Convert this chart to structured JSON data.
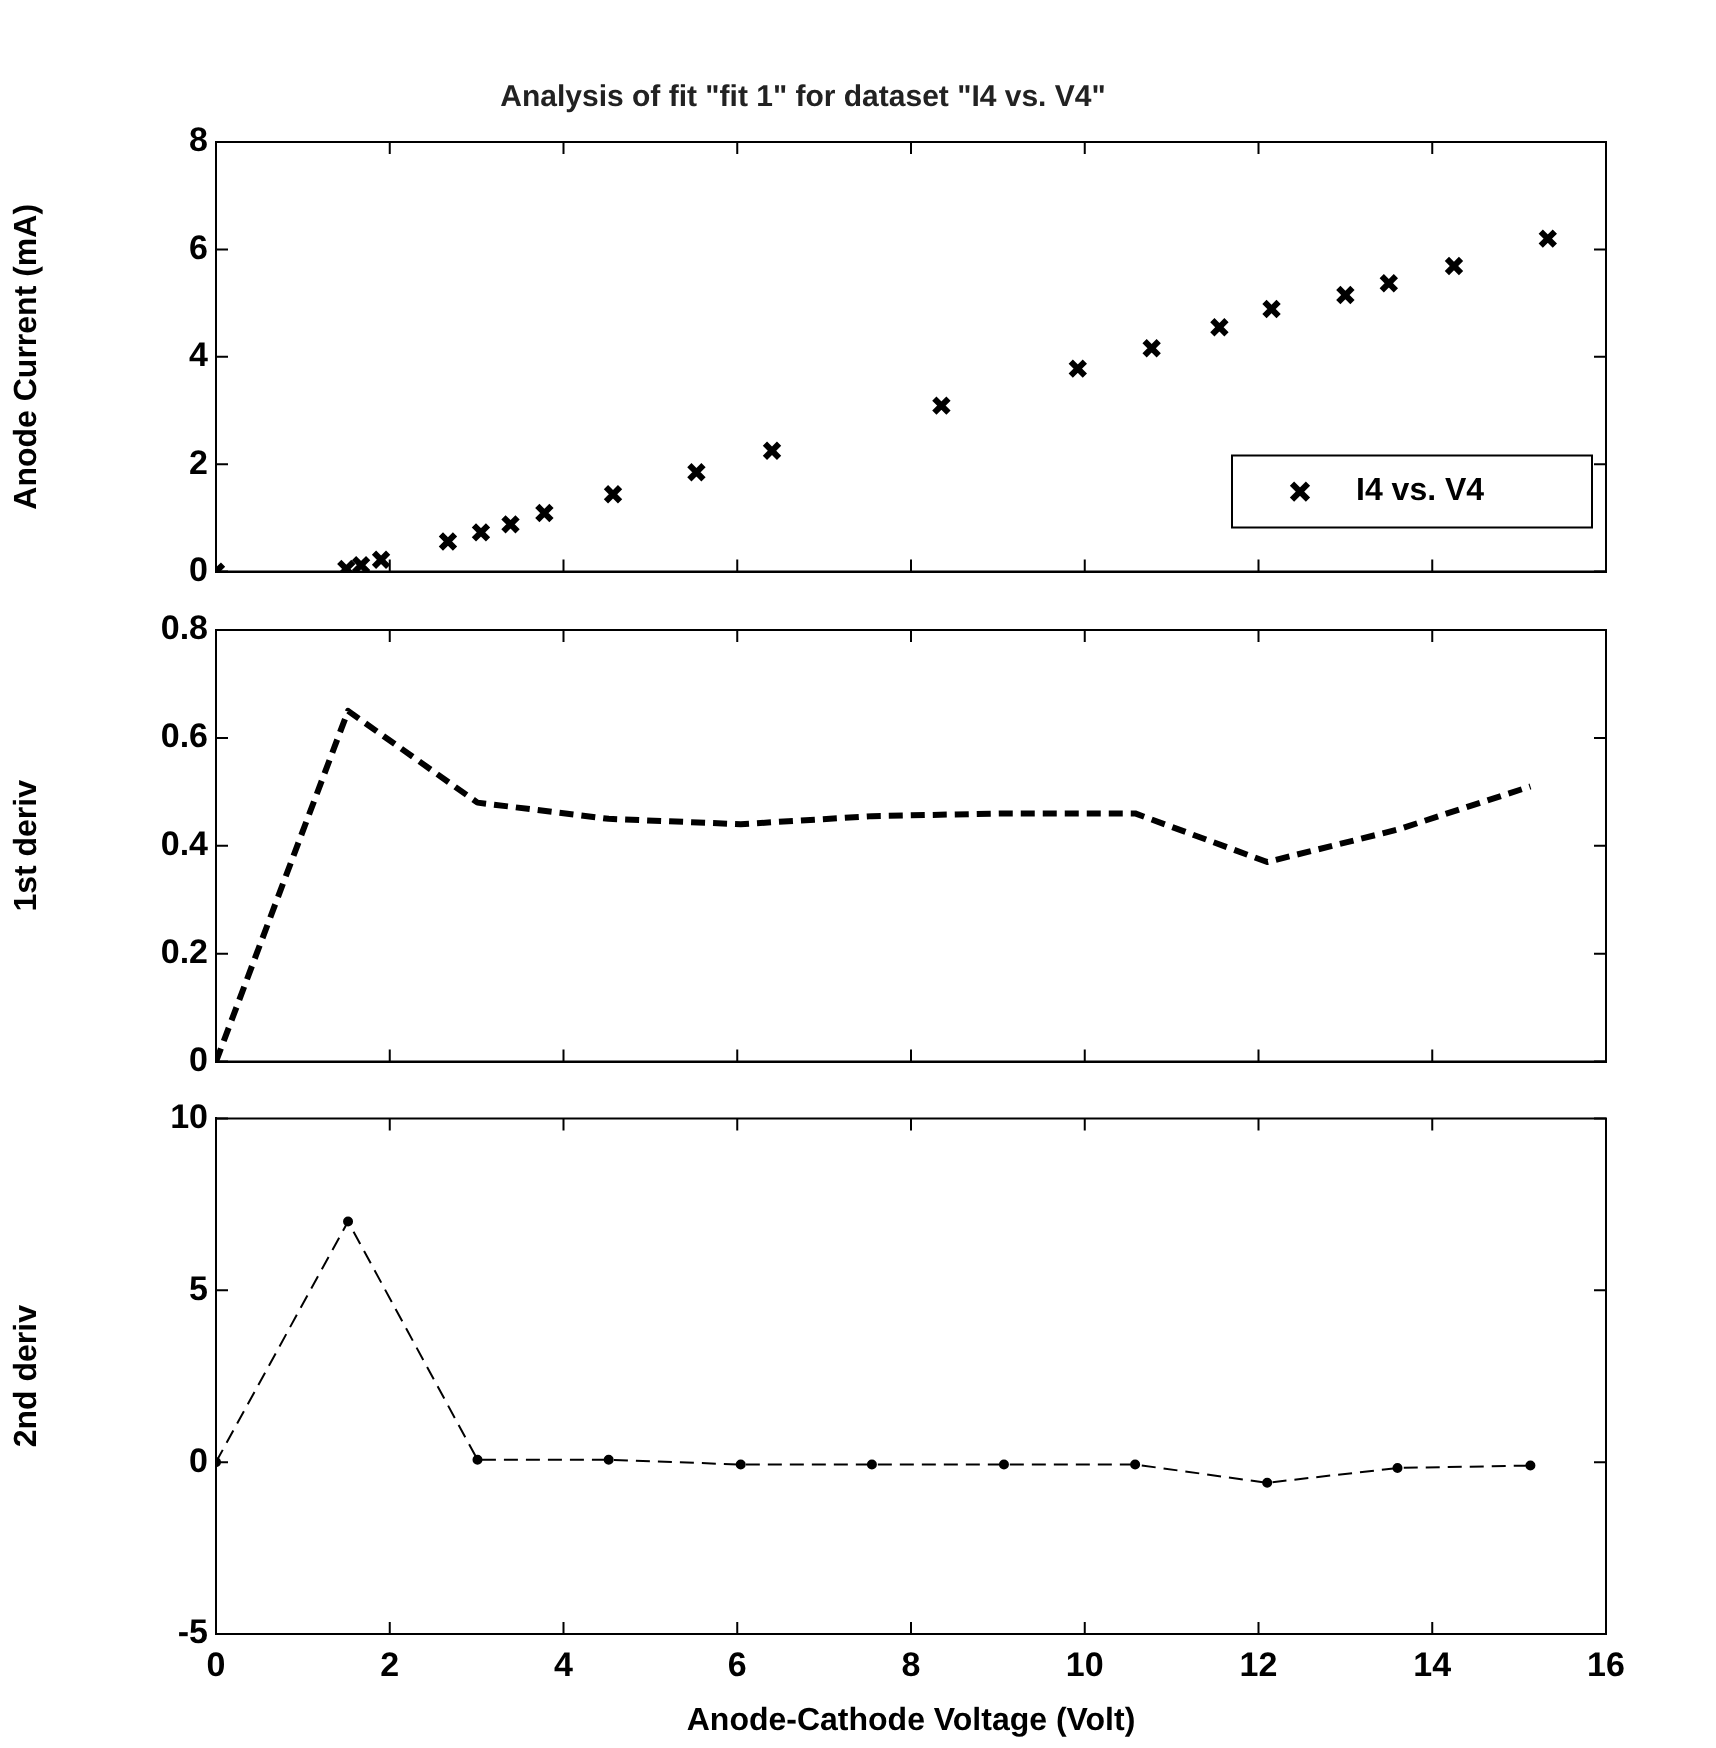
{
  "chart_data": [
    {
      "type": "scatter",
      "title": "Analysis of fit \"fit 1\" for dataset \"I4 vs. V4\"",
      "ylabel": "Anode Current (mA)",
      "x": [
        0,
        1.5,
        1.67,
        1.9,
        2.67,
        3.05,
        3.39,
        3.78,
        4.57,
        5.53,
        6.4,
        8.35,
        9.92,
        10.77,
        11.55,
        12.15,
        13.0,
        13.5,
        14.25,
        15.33
      ],
      "series": [
        {
          "name": "I4 vs. V4",
          "color": "#000000",
          "values": [
            0,
            0.05,
            0.12,
            0.22,
            0.56,
            0.73,
            0.88,
            1.09,
            1.44,
            1.85,
            2.25,
            3.09,
            3.78,
            4.16,
            4.55,
            4.89,
            5.15,
            5.37,
            5.69,
            6.2
          ]
        }
      ],
      "xlim": [
        0,
        16
      ],
      "xticks": [
        0,
        2,
        4,
        6,
        8,
        10,
        12,
        14,
        16
      ],
      "ylim": [
        0,
        8
      ],
      "yticks": [
        0,
        2,
        4,
        6,
        8
      ],
      "marker": "cross",
      "legend": "bottom right",
      "grid": false,
      "tick_labels": "y"
    },
    {
      "type": "line",
      "ylabel": "1st deriv",
      "x": [
        0,
        1.52,
        3.01,
        4.52,
        6.04,
        7.55,
        9.07,
        10.58,
        12.1,
        13.6,
        15.13
      ],
      "series": [
        {
          "color": "#000000",
          "values": [
            0,
            0.65,
            0.48,
            0.45,
            0.44,
            0.455,
            0.46,
            0.46,
            0.37,
            0.43,
            0.51
          ]
        }
      ],
      "xlim": [
        0,
        16
      ],
      "xticks": [
        0,
        2,
        4,
        6,
        8,
        10,
        12,
        14,
        16
      ],
      "ylim": [
        0,
        0.8
      ],
      "yticks": [
        0,
        0.2,
        0.4,
        0.6,
        0.8
      ],
      "marker": "none",
      "line_style": "dashed",
      "grid": false,
      "tick_labels": "y"
    },
    {
      "type": "line",
      "ylabel": "2nd deriv",
      "xlabel": "Anode-Cathode Voltage (Volt)",
      "x": [
        0,
        1.52,
        3.01,
        4.52,
        6.04,
        7.55,
        9.07,
        10.58,
        12.1,
        13.6,
        15.13
      ],
      "series": [
        {
          "color": "#000000",
          "values": [
            0,
            7.0,
            0.07,
            0.07,
            -0.07,
            -0.07,
            -0.07,
            -0.07,
            -0.6,
            -0.17,
            -0.1
          ]
        }
      ],
      "xlim": [
        0,
        16
      ],
      "xticks": [
        0,
        2,
        4,
        6,
        8,
        10,
        12,
        14,
        16
      ],
      "ylim": [
        -5,
        10
      ],
      "yticks": [
        -5,
        0,
        5,
        10
      ],
      "marker": "circle",
      "line_style": "dashed",
      "grid": false
    }
  ]
}
